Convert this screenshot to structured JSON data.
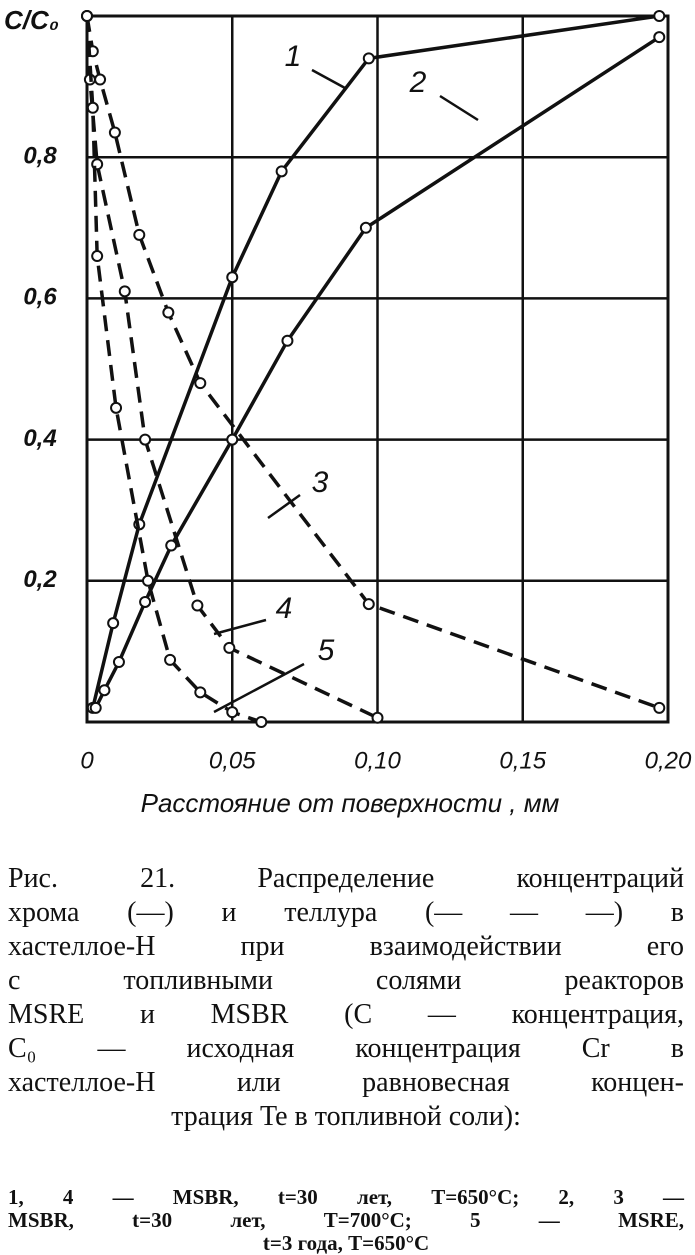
{
  "chart_data": {
    "type": "line",
    "y_label": "C/C₀",
    "x_label": "Расстояние от поверхности , мм",
    "xlim": [
      0,
      0.2
    ],
    "ylim": [
      0,
      1
    ],
    "xticks": [
      0,
      {
        "value": 0.05,
        "label": "0,05"
      },
      {
        "value": 0.1,
        "label": "0,10"
      },
      {
        "value": 0.15,
        "label": "0,15"
      },
      {
        "value": 0.2,
        "label": "0,20"
      }
    ],
    "yticks": [
      {
        "value": 0.2,
        "label": "0,2"
      },
      {
        "value": 0.4,
        "label": "0,4"
      },
      {
        "value": 0.6,
        "label": "0,6"
      },
      {
        "value": 0.8,
        "label": "0,8"
      }
    ],
    "grid": true,
    "series": [
      {
        "name": "1",
        "color": "#111111",
        "dashed": false,
        "x": [
          0.002,
          0.009,
          0.018,
          0.05,
          0.067,
          0.097,
          0.197
        ],
        "values": [
          0.02,
          0.14,
          0.28,
          0.63,
          0.78,
          0.94,
          1.0
        ]
      },
      {
        "name": "2",
        "color": "#111111",
        "dashed": false,
        "x": [
          0.003,
          0.006,
          0.011,
          0.02,
          0.029,
          0.05,
          0.069,
          0.096,
          0.197
        ],
        "values": [
          0.02,
          0.045,
          0.085,
          0.17,
          0.25,
          0.4,
          0.54,
          0.7,
          0.97
        ]
      },
      {
        "name": "3",
        "color": "#111111",
        "dashed": true,
        "x": [
          0,
          0.002,
          0.0045,
          0.0096,
          0.018,
          0.028,
          0.039,
          0.097,
          0.197
        ],
        "values": [
          1.0,
          0.95,
          0.91,
          0.835,
          0.69,
          0.58,
          0.48,
          0.167,
          0.02
        ]
      },
      {
        "name": "4",
        "color": "#111111",
        "dashed": true,
        "x": [
          0,
          0.001,
          0.0035,
          0.013,
          0.02,
          0.038,
          0.049,
          0.1
        ],
        "values": [
          1.0,
          0.91,
          0.79,
          0.61,
          0.4,
          0.165,
          0.105,
          0.006
        ]
      },
      {
        "name": "5",
        "color": "#111111",
        "dashed": true,
        "x": [
          0,
          0.002,
          0.0035,
          0.01,
          0.021,
          0.0286,
          0.039,
          0.05,
          0.06
        ],
        "values": [
          1.0,
          0.87,
          0.66,
          0.445,
          0.2,
          0.088,
          0.042,
          0.014,
          0.0
        ]
      }
    ]
  },
  "caption": {
    "lines": [
      "Рис. 21. Распределение концентраций",
      "хрома (—) и теллура (— — —) в",
      "хастеллое-Н при взаимодействии его",
      "с топливными солями реакторов",
      "MSRE и MSBR (C — концентрация,",
      "C₀ — исходная концентрация Cr в",
      "хастеллое-Н или равновесная концен-",
      "трация Te в топливной соли):"
    ],
    "notes": [
      "1, 4 — MSBR, t=30 лет, T=650°C; 2, 3 —",
      "MSBR, t=30 лет, T=700°C; 5 — MSRE,",
      "t=3 года, T=650°C"
    ]
  }
}
